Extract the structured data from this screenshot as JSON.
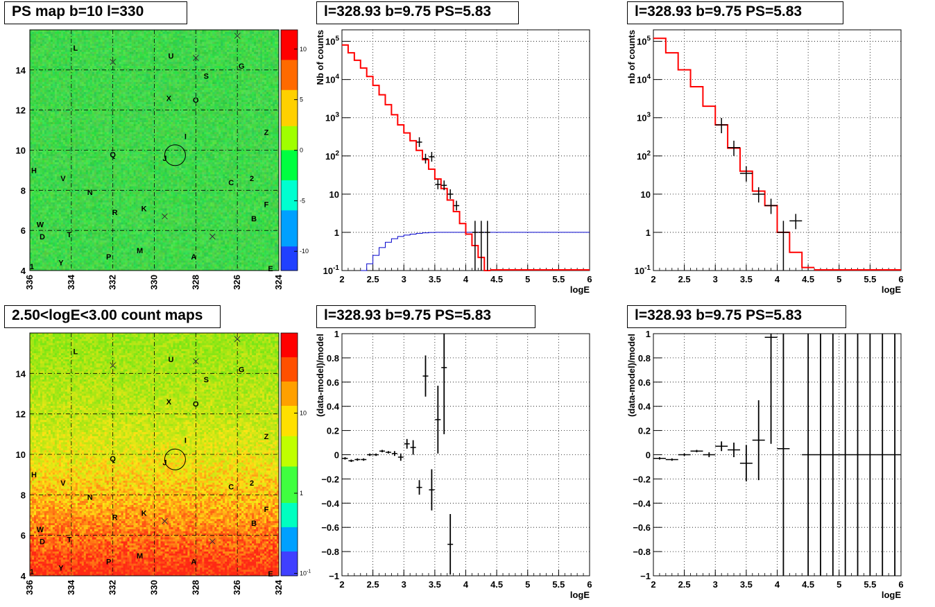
{
  "titles": {
    "ps_map": "PS map b=10 l=330",
    "count_map": "2.50<logE<3.00 count maps",
    "spec1": "l=328.93 b=9.75 PS=5.83",
    "spec2": "l=328.93 b=9.75 PS=5.83",
    "res1": "l=328.93 b=9.75 PS=5.83",
    "res2": "l=328.93 b=9.75 PS=5.83"
  },
  "axes": {
    "xlabel": "logE",
    "spec1_ylabel": "Nb of counts",
    "spec2_ylabel": "nb of counts",
    "res_ylabel": "(data-model)/model"
  },
  "colors": {
    "model_line": "#ff0000",
    "background_line": "#0000cc",
    "data": "#000000"
  },
  "chart_data": [
    {
      "type": "heatmap",
      "title": "PS map b=10 l=330",
      "xlim": [
        336,
        324
      ],
      "ylim": [
        4,
        16
      ],
      "x_ticks": [
        "336",
        "334",
        "332",
        "330",
        "328",
        "326",
        "324"
      ],
      "y_ticks": [
        "4",
        "6",
        "8",
        "10",
        "12",
        "14"
      ],
      "zlim": [
        -13,
        13
      ],
      "z_ticks": [
        "10",
        "5",
        "0",
        "-5",
        "-10"
      ],
      "circle_center": [
        329,
        9.75
      ],
      "crosses": [
        [
          332,
          14.4
        ],
        [
          328,
          14.6
        ],
        [
          326,
          15.7
        ],
        [
          329.5,
          6.7
        ],
        [
          327.2,
          5.7
        ]
      ],
      "sources": [
        {
          "label": "L",
          "l": 333.8,
          "b": 15.1
        },
        {
          "label": "U",
          "l": 329.2,
          "b": 14.7
        },
        {
          "label": "G",
          "l": 325.8,
          "b": 14.2
        },
        {
          "label": "S",
          "l": 327.5,
          "b": 13.7
        },
        {
          "label": "X",
          "l": 329.3,
          "b": 12.6
        },
        {
          "label": "O",
          "l": 328,
          "b": 12.5
        },
        {
          "label": "I",
          "l": 328.5,
          "b": 10.7
        },
        {
          "label": "Z",
          "l": 324.6,
          "b": 10.9
        },
        {
          "label": "Q",
          "l": 332,
          "b": 9.8
        },
        {
          "label": "J",
          "l": 329.5,
          "b": 9.6
        },
        {
          "label": "H",
          "l": 335.8,
          "b": 9
        },
        {
          "label": "V",
          "l": 334.4,
          "b": 8.6
        },
        {
          "label": "C",
          "l": 326.3,
          "b": 8.4
        },
        {
          "label": "2",
          "l": 325.3,
          "b": 8.6
        },
        {
          "label": "N",
          "l": 333.1,
          "b": 7.9
        },
        {
          "label": "R",
          "l": 331.9,
          "b": 6.9
        },
        {
          "label": "K",
          "l": 330.5,
          "b": 7.1
        },
        {
          "label": "F",
          "l": 324.6,
          "b": 7.3
        },
        {
          "label": "B",
          "l": 325.2,
          "b": 6.6
        },
        {
          "label": "W",
          "l": 335.5,
          "b": 6.3
        },
        {
          "label": "D",
          "l": 335.4,
          "b": 5.7
        },
        {
          "label": "T",
          "l": 334.1,
          "b": 5.8
        },
        {
          "label": "M",
          "l": 330.7,
          "b": 5
        },
        {
          "label": "P",
          "l": 332.2,
          "b": 4.7
        },
        {
          "label": "A",
          "l": 328.1,
          "b": 4.7
        },
        {
          "label": "Y",
          "l": 334.5,
          "b": 4.4
        },
        {
          "label": "1",
          "l": 335.9,
          "b": 4.2
        },
        {
          "label": "E",
          "l": 324.4,
          "b": 4.1
        }
      ]
    },
    {
      "type": "heatmap",
      "title": "2.50<logE<3.00 count maps",
      "xlim": [
        336,
        324
      ],
      "ylim": [
        4,
        16
      ],
      "x_ticks": [
        "336",
        "334",
        "332",
        "330",
        "328",
        "326",
        "324"
      ],
      "y_ticks": [
        "4",
        "6",
        "8",
        "10",
        "12",
        "14"
      ],
      "z_scale": "log",
      "z_ticks": [
        "10",
        "1",
        "10^-1"
      ],
      "circle_center": [
        329,
        9.75
      ]
    },
    {
      "type": "line",
      "title": "l=328.93 b=9.75 PS=5.83",
      "xlabel": "logE",
      "ylabel": "Nb of counts",
      "xlim": [
        2,
        6
      ],
      "ylim": [
        0.1,
        200000
      ],
      "y_scale": "log",
      "x_ticks": [
        "2",
        "2.5",
        "3",
        "3.5",
        "4",
        "4.5",
        "5",
        "5.5",
        "6"
      ],
      "y_ticks": [
        "10^-1",
        "1",
        "10",
        "10^2",
        "10^3",
        "10^4",
        "10^5"
      ],
      "series": [
        {
          "role": "model",
          "bin_width": 0.1,
          "x": [
            2,
            2.1,
            2.2,
            2.3,
            2.4,
            2.5,
            2.6,
            2.7,
            2.8,
            2.9,
            3,
            3.1,
            3.2,
            3.3,
            3.4,
            3.5,
            3.6,
            3.7,
            3.8,
            3.9,
            4,
            4.1,
            4.2,
            4.3
          ],
          "values": [
            80000,
            50000,
            32000,
            20000,
            12000,
            7000,
            4000,
            2200,
            1200,
            650,
            400,
            250,
            140,
            80,
            45,
            25,
            14,
            7,
            3.5,
            1.7,
            0.9,
            0.45,
            0.22,
            0.1
          ]
        },
        {
          "role": "background",
          "bin_width": 0.1,
          "x": [
            2.3,
            2.4,
            2.5,
            2.6,
            2.7,
            2.8,
            2.9,
            3,
            3.1,
            3.2,
            3.3,
            3.4,
            3.5,
            3.6,
            3.7
          ],
          "values": [
            0.1,
            0.15,
            0.25,
            0.4,
            0.55,
            0.68,
            0.78,
            0.85,
            0.9,
            0.94,
            0.97,
            0.99,
            1,
            1,
            1
          ]
        },
        {
          "role": "data",
          "x": [
            3.25,
            3.35,
            3.45,
            3.55,
            3.65,
            3.75,
            3.85,
            4.15,
            4.25,
            4.35
          ],
          "values": [
            230,
            85,
            95,
            18,
            17,
            10,
            5,
            1,
            1,
            1
          ]
        }
      ]
    },
    {
      "type": "line",
      "title": "l=328.93 b=9.75 PS=5.83",
      "xlabel": "logE",
      "ylabel": "nb of counts",
      "xlim": [
        2,
        6
      ],
      "ylim": [
        0.1,
        200000
      ],
      "y_scale": "log",
      "x_ticks": [
        "2",
        "2.5",
        "3",
        "3.5",
        "4",
        "4.5",
        "5",
        "5.5",
        "6"
      ],
      "y_ticks": [
        "10^-1",
        "1",
        "10",
        "10^2",
        "10^3",
        "10^4",
        "10^5"
      ],
      "series": [
        {
          "role": "model",
          "bin_width": 0.2,
          "x": [
            2,
            2.2,
            2.4,
            2.6,
            2.8,
            3,
            3.2,
            3.4,
            3.6,
            3.8,
            4,
            4.2,
            4.4
          ],
          "values": [
            120000,
            50000,
            18000,
            6500,
            2000,
            650,
            160,
            40,
            12,
            5,
            1,
            0.3,
            0.12
          ]
        },
        {
          "role": "data",
          "x": [
            3.1,
            3.3,
            3.5,
            3.7,
            3.9,
            4.1,
            4.3
          ],
          "values": [
            650,
            165,
            35,
            10,
            5,
            1,
            2
          ]
        }
      ]
    },
    {
      "type": "scatter",
      "title": "l=328.93 b=9.75 PS=5.83",
      "xlabel": "logE",
      "ylabel": "(data-model)/model",
      "xlim": [
        2,
        6
      ],
      "ylim": [
        -1,
        1
      ],
      "x_ticks": [
        "2",
        "2.5",
        "3",
        "3.5",
        "4",
        "4.5",
        "5",
        "5.5",
        "6"
      ],
      "y_ticks": [
        "-1",
        "-0.8",
        "-0.6",
        "-0.4",
        "-0.2",
        "0",
        "0.2",
        "0.4",
        "0.6",
        "0.8",
        "1"
      ],
      "x": [
        2.05,
        2.15,
        2.25,
        2.35,
        2.45,
        2.55,
        2.65,
        2.75,
        2.85,
        2.95,
        3.05,
        3.15,
        3.25,
        3.35,
        3.45,
        3.55,
        3.65,
        3.75
      ],
      "values": [
        -0.03,
        -0.05,
        -0.04,
        -0.04,
        0,
        0,
        0.03,
        0.02,
        0.01,
        -0.02,
        0.09,
        0.06,
        -0.27,
        0.65,
        -0.29,
        0.29,
        0.72,
        -0.74
      ],
      "errors": [
        0.01,
        0.01,
        0.01,
        0.01,
        0.01,
        0.01,
        0.01,
        0.01,
        0.02,
        0.03,
        0.04,
        0.06,
        0.06,
        0.17,
        0.17,
        0.28,
        0.55,
        0.25
      ]
    },
    {
      "type": "scatter",
      "title": "l=328.93 b=9.75 PS=5.83",
      "xlabel": "logE",
      "ylabel": "(data-model)/model",
      "xlim": [
        2,
        6
      ],
      "ylim": [
        -1,
        1
      ],
      "x_ticks": [
        "2",
        "2.5",
        "3",
        "3.5",
        "4",
        "4.5",
        "5",
        "5.5",
        "6"
      ],
      "y_ticks": [
        "-1",
        "-0.8",
        "-0.6",
        "-0.4",
        "-0.2",
        "0",
        "0.2",
        "0.4",
        "0.6",
        "0.8",
        "1"
      ],
      "x": [
        2.1,
        2.3,
        2.5,
        2.7,
        2.9,
        3.1,
        3.3,
        3.5,
        3.7,
        3.9,
        4.1,
        4.5,
        4.7,
        4.9,
        5.1,
        5.3,
        5.5,
        5.7,
        5.9
      ],
      "values": [
        -0.03,
        -0.04,
        0,
        0.03,
        0,
        0.07,
        0.04,
        -0.07,
        0.12,
        0.97,
        0.05,
        0,
        0,
        0,
        0,
        0,
        0,
        0,
        0
      ],
      "errors": [
        0.01,
        0.01,
        0.01,
        0.01,
        0.02,
        0.04,
        0.06,
        0.15,
        0.33,
        0.88,
        1.2,
        1.2,
        1.2,
        1.2,
        1.2,
        1.2,
        1.2,
        1.2,
        1.2
      ]
    }
  ]
}
